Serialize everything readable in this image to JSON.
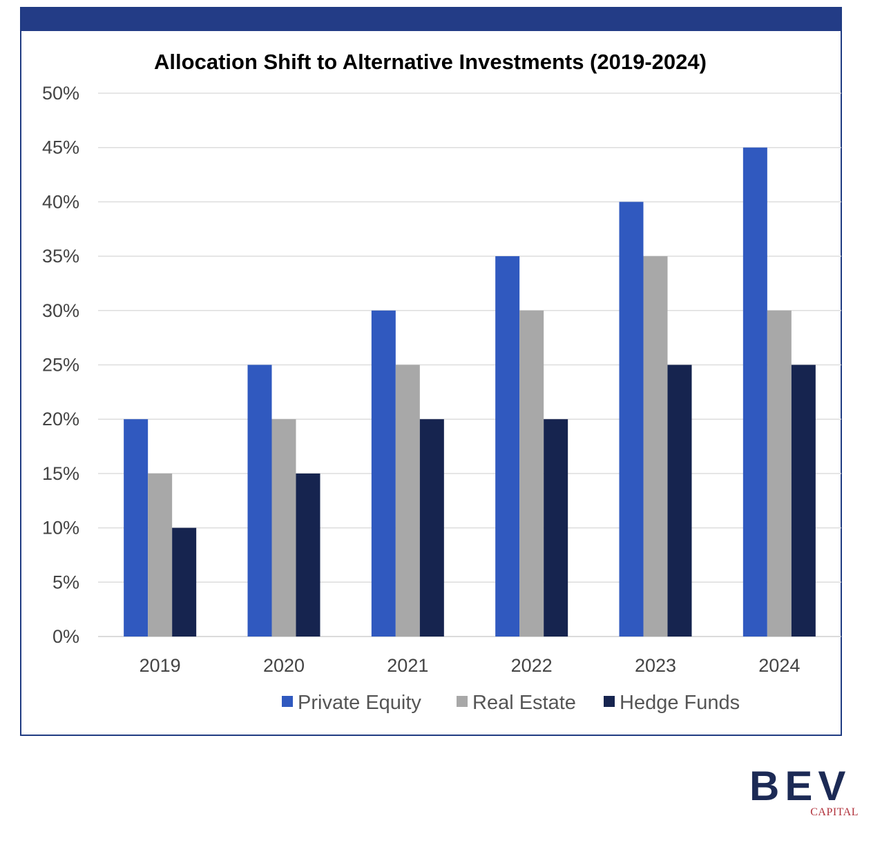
{
  "chart_data": {
    "type": "bar",
    "title": "Allocation Shift to Alternative Investments (2019-2024)",
    "categories": [
      "2019",
      "2020",
      "2021",
      "2022",
      "2023",
      "2024"
    ],
    "series": [
      {
        "name": "Private Equity",
        "color": "#3059bf",
        "values": [
          20,
          25,
          30,
          35,
          40,
          45
        ]
      },
      {
        "name": "Real Estate",
        "color": "#a8a8a8",
        "values": [
          15,
          20,
          25,
          30,
          35,
          30
        ]
      },
      {
        "name": "Hedge Funds",
        "color": "#16244f",
        "values": [
          10,
          15,
          20,
          20,
          25,
          25
        ]
      }
    ],
    "ylim": [
      0,
      50
    ],
    "yticks": [
      "0%",
      "5%",
      "10%",
      "15%",
      "20%",
      "25%",
      "30%",
      "35%",
      "40%",
      "45%",
      "50%"
    ],
    "grid": true,
    "legend_position": "bottom"
  },
  "colors": {
    "frame": "#233c86",
    "gridline": "#dddddd"
  },
  "logo": {
    "letters": "BEV",
    "sub": "CAPITAL"
  }
}
